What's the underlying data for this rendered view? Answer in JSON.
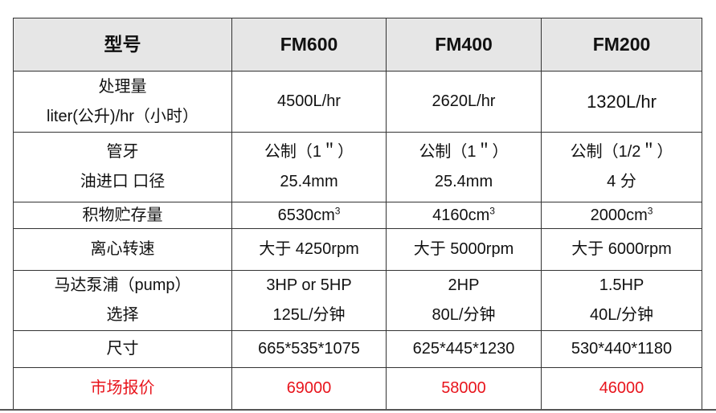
{
  "header": {
    "label": "型号",
    "models": [
      "FM600",
      "FM400",
      "FM200"
    ]
  },
  "rows": [
    {
      "label": [
        "处理量",
        "liter(公升)/hr（小时）"
      ],
      "values": [
        [
          "4500L/hr"
        ],
        [
          "2620L/hr"
        ],
        [
          "1320L/hr"
        ]
      ]
    },
    {
      "label": [
        "管牙",
        "油进口 口径"
      ],
      "values": [
        [
          "公制（1＂）",
          "25.4mm"
        ],
        [
          "公制（1＂）",
          "25.4mm"
        ],
        [
          "公制（1/2＂）",
          "4 分"
        ]
      ]
    },
    {
      "label": [
        "积物贮存量"
      ],
      "values": [
        [
          "6530cm"
        ],
        [
          "4160cm"
        ],
        [
          "2000cm"
        ]
      ],
      "sup": "3"
    },
    {
      "label": [
        "离心转速"
      ],
      "values": [
        [
          "大于 4250rpm"
        ],
        [
          "大于 5000rpm"
        ],
        [
          "大于 6000rpm"
        ]
      ]
    },
    {
      "label": [
        "马达泵浦（pump）",
        "选择"
      ],
      "values": [
        [
          "3HP or 5HP",
          "125L/分钟"
        ],
        [
          "2HP",
          "80L/分钟"
        ],
        [
          "1.5HP",
          "40L/分钟"
        ]
      ]
    },
    {
      "label": [
        "尺寸"
      ],
      "values": [
        [
          "665*535*1075"
        ],
        [
          "625*445*1230"
        ],
        [
          "530*440*1180"
        ]
      ]
    }
  ],
  "price": {
    "label": "市场报价",
    "values": [
      "69000",
      "58000",
      "46000"
    ]
  },
  "colors": {
    "price_text": "#e8141c",
    "header_bg": "#e6e6e6"
  }
}
